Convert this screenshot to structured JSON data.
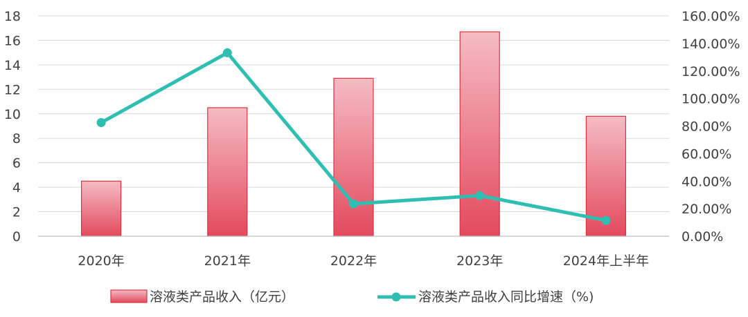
{
  "chart_data": {
    "type": "bar",
    "categories": [
      "2020年",
      "2021年",
      "2022年",
      "2023年",
      "2024年上半年"
    ],
    "series": [
      {
        "name": "溶液类产品收入（亿元）",
        "type": "bar",
        "axis": "left",
        "values": [
          4.5,
          10.5,
          12.9,
          16.7,
          9.8
        ]
      },
      {
        "name": "溶液类产品收入同比增速（%)",
        "type": "line",
        "axis": "right",
        "values": [
          82.5,
          133.2,
          23.5,
          29.5,
          11.5
        ]
      }
    ],
    "left_axis": {
      "ylim": [
        0,
        18
      ],
      "ticks": [
        "0",
        "2",
        "4",
        "6",
        "8",
        "10",
        "12",
        "14",
        "16",
        "18"
      ]
    },
    "right_axis": {
      "ylim": [
        0,
        160
      ],
      "ticks": [
        "0.00%",
        "20.00%",
        "40.00%",
        "60.00%",
        "80.00%",
        "100.00%",
        "120.00%",
        "140.00%",
        "160.00%"
      ]
    },
    "grid": true,
    "legend_position": "bottom",
    "colors": {
      "bar_top": "#f5bcc4",
      "bar_bottom": "#e34a5e",
      "bar_stroke": "#e0303f",
      "line": "#2fbfb2",
      "grid": "#d9d9d9",
      "axis": "#bfbfbf"
    }
  }
}
